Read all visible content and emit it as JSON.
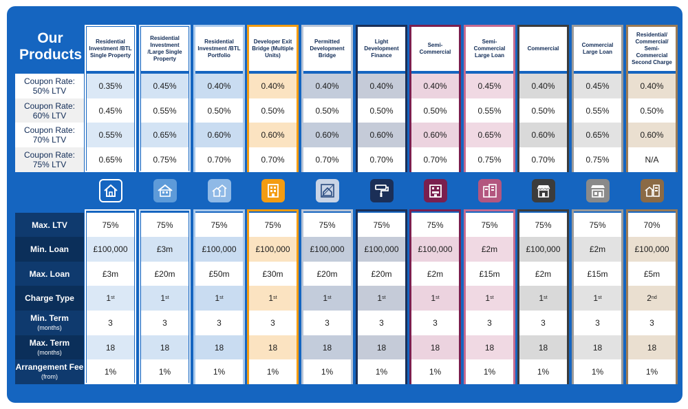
{
  "title": {
    "line1": "Our",
    "line2": "Products"
  },
  "top_rows": [
    "Coupon Rate: 50% LTV",
    "Coupon Rate: 60% LTV",
    "Coupon Rate: 70% LTV",
    "Coupon Rate: 75% LTV"
  ],
  "top_rows_lines": [
    [
      "Coupon Rate:",
      "50% LTV"
    ],
    [
      "Coupon Rate:",
      "60% LTV"
    ],
    [
      "Coupon Rate:",
      "70% LTV"
    ],
    [
      "Coupon Rate:",
      "75% LTV"
    ]
  ],
  "bottom_rows": [
    {
      "label": "Max. LTV",
      "sub": ""
    },
    {
      "label": "Min. Loan",
      "sub": ""
    },
    {
      "label": "Max. Loan",
      "sub": ""
    },
    {
      "label": "Charge Type",
      "sub": ""
    },
    {
      "label": "Min. Term",
      "sub": "(months)"
    },
    {
      "label": "Max. Term",
      "sub": "(months)"
    },
    {
      "label": "Arrangement Fee",
      "sub": "(from)"
    }
  ],
  "products": [
    {
      "name": "Residential Investment /BTL Single Property",
      "border": "#ffffff",
      "tint": "#dbe8f6",
      "icon": "house-icon",
      "icon_bg": "#1565c0",
      "rates": [
        "0.35%",
        "0.45%",
        "0.55%",
        "0.65%"
      ],
      "ltv": "75%",
      "min_loan": "£100,000",
      "max_loan": "£3m",
      "charge": "1",
      "charge_sup": "st",
      "min_term": "3",
      "max_term": "18",
      "fee": "1%"
    },
    {
      "name": "Residential Investment /Large Single Property",
      "border": "#d6e6f7",
      "tint": "#d3e3f4",
      "icon": "large-house-icon",
      "icon_bg": "#5e9bd9",
      "rates": [
        "0.45%",
        "0.55%",
        "0.65%",
        "0.75%"
      ],
      "ltv": "75%",
      "min_loan": "£3m",
      "max_loan": "£20m",
      "charge": "1",
      "charge_sup": "st",
      "min_term": "3",
      "max_term": "18",
      "fee": "1%"
    },
    {
      "name": "Residential Investment /BTL Portfolio",
      "border": "#a9c9ec",
      "tint": "#c9dcf1",
      "icon": "portfolio-houses-icon",
      "icon_bg": "#8fb9e6",
      "rates": [
        "0.40%",
        "0.50%",
        "0.60%",
        "0.70%"
      ],
      "ltv": "75%",
      "min_loan": "£100,000",
      "max_loan": "£50m",
      "charge": "1",
      "charge_sup": "st",
      "min_term": "3",
      "max_term": "18",
      "fee": "1%"
    },
    {
      "name": "Developer Exit Bridge (Multiple Units)",
      "border": "#f39c12",
      "tint": "#fbe3c1",
      "icon": "apartment-block-icon",
      "icon_bg": "#f39c12",
      "rates": [
        "0.40%",
        "0.50%",
        "0.60%",
        "0.70%"
      ],
      "ltv": "75%",
      "min_loan": "£100,000",
      "max_loan": "£30m",
      "charge": "1",
      "charge_sup": "st",
      "min_term": "3",
      "max_term": "18",
      "fee": "1%"
    },
    {
      "name": "Permitted Development Bridge",
      "border": "#b8c4d6",
      "tint": "#c3ccdb",
      "icon": "blueprint-house-icon",
      "icon_bg": "#c9d4e6",
      "rates": [
        "0.40%",
        "0.50%",
        "0.60%",
        "0.70%"
      ],
      "ltv": "75%",
      "min_loan": "£100,000",
      "max_loan": "£20m",
      "charge": "1",
      "charge_sup": "st",
      "min_term": "3",
      "max_term": "18",
      "fee": "1%"
    },
    {
      "name": "Light Development Finance",
      "border": "#1b2f57",
      "tint": "#c5cbd8",
      "icon": "paint-roller-icon",
      "icon_bg": "#1b2f57",
      "rates": [
        "0.40%",
        "0.50%",
        "0.60%",
        "0.70%"
      ],
      "ltv": "75%",
      "min_loan": "£100,000",
      "max_loan": "£20m",
      "charge": "1",
      "charge_sup": "st",
      "min_term": "3",
      "max_term": "18",
      "fee": "1%"
    },
    {
      "name": "Semi-Commercial",
      "border": "#7a1f4f",
      "tint": "#ecd3df",
      "icon": "mixed-use-building-icon",
      "icon_bg": "#7a1f4f",
      "rates": [
        "0.40%",
        "0.50%",
        "0.60%",
        "0.70%"
      ],
      "ltv": "75%",
      "min_loan": "£100,000",
      "max_loan": "£2m",
      "charge": "1",
      "charge_sup": "st",
      "min_term": "3",
      "max_term": "18",
      "fee": "1%"
    },
    {
      "name": "Semi-Commercial Large Loan",
      "border": "#c46a90",
      "tint": "#f0d9e3",
      "icon": "large-building-icon",
      "icon_bg": "#b3567f",
      "rates": [
        "0.45%",
        "0.55%",
        "0.65%",
        "0.75%"
      ],
      "ltv": "75%",
      "min_loan": "£2m",
      "max_loan": "£15m",
      "charge": "1",
      "charge_sup": "st",
      "min_term": "3",
      "max_term": "18",
      "fee": "1%"
    },
    {
      "name": "Commercial",
      "border": "#3c3c3c",
      "tint": "#d9d9d9",
      "icon": "shopfront-icon",
      "icon_bg": "#3c3c3c",
      "rates": [
        "0.40%",
        "0.50%",
        "0.60%",
        "0.70%"
      ],
      "ltv": "75%",
      "min_loan": "£100,000",
      "max_loan": "£2m",
      "charge": "1",
      "charge_sup": "st",
      "min_term": "3",
      "max_term": "18",
      "fee": "1%"
    },
    {
      "name": "Commercial Large Loan",
      "border": "#9a9a9a",
      "tint": "#e2e2e2",
      "icon": "large-shopfront-icon",
      "icon_bg": "#8a8a8a",
      "rates": [
        "0.45%",
        "0.55%",
        "0.65%",
        "0.75%"
      ],
      "ltv": "75%",
      "min_loan": "£2m",
      "max_loan": "£15m",
      "charge": "1",
      "charge_sup": "st",
      "min_term": "3",
      "max_term": "18",
      "fee": "1%"
    },
    {
      "name": "Residential/ Commercial/ Semi-Commercial Second Charge",
      "border": "#9c7b55",
      "tint": "#eadfd0",
      "icon": "mixed-property-icon",
      "icon_bg": "#8b6a45",
      "rates": [
        "0.40%",
        "0.50%",
        "0.60%",
        "N/A"
      ],
      "ltv": "70%",
      "min_loan": "£100,000",
      "max_loan": "£5m",
      "charge": "2",
      "charge_sup": "nd",
      "min_term": "3",
      "max_term": "18",
      "fee": "1%"
    }
  ]
}
